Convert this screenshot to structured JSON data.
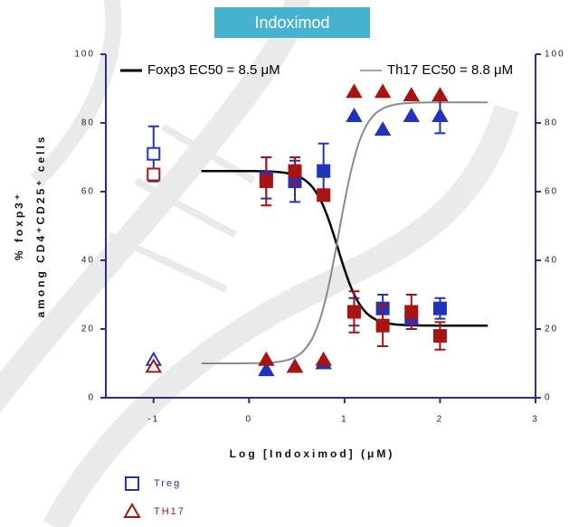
{
  "chart_data": {
    "type": "scatter",
    "title": "Indoximod",
    "x_label": "Log [Indoximod] (μM)",
    "y_label": [
      "% foxp3⁺",
      "among CD4⁺CD25⁺ cells"
    ],
    "xlim": [
      -1.5,
      3
    ],
    "xticks": [
      -1,
      0,
      1,
      2,
      3
    ],
    "ylim": [
      0,
      100
    ],
    "yticks": [
      0,
      20,
      40,
      60,
      80,
      100
    ],
    "y2lim": [
      0,
      100
    ],
    "y2ticks": [
      0,
      20,
      40,
      60,
      80,
      100
    ],
    "axis_color": "#2b2d8f",
    "x": [
      -1,
      0.18,
      0.48,
      0.78,
      1.1,
      1.4,
      1.7,
      2.0
    ],
    "series": [
      {
        "name": "Treg",
        "color": "#2233bb",
        "marker": "square",
        "filled": [
          false,
          true,
          true,
          true,
          true,
          true,
          true,
          true
        ],
        "values": [
          71,
          64,
          63,
          66,
          25,
          26,
          23,
          26
        ],
        "errors": [
          8,
          6,
          6,
          8,
          4,
          4,
          3,
          3
        ]
      },
      {
        "color": "#a81414",
        "marker": "square",
        "filled": [
          false,
          true,
          true,
          true,
          true,
          true,
          true,
          true
        ],
        "values": [
          65,
          63,
          66,
          59,
          25,
          21,
          25,
          18
        ],
        "errors": [
          null,
          7,
          4,
          null,
          6,
          6,
          5,
          4
        ]
      },
      {
        "color": "#2233bb",
        "marker": "triangle",
        "filled": [
          false,
          true,
          true,
          true,
          true,
          true,
          true,
          true
        ],
        "values": [
          11,
          8,
          9,
          10,
          82,
          78,
          82,
          82
        ],
        "errors": [
          null,
          null,
          null,
          null,
          null,
          null,
          null,
          5
        ]
      },
      {
        "name": "TH17",
        "color": "#a81414",
        "marker": "triangle",
        "filled": [
          false,
          true,
          true,
          true,
          true,
          true,
          true,
          true
        ],
        "values": [
          9,
          11,
          9,
          11,
          89,
          89,
          88,
          88
        ],
        "errors": [
          null,
          null,
          null,
          null,
          null,
          null,
          null,
          null
        ]
      }
    ],
    "curves": [
      {
        "name": "Foxp3 EC50 = 8.5 μM",
        "color": "#000000",
        "bottom": 21,
        "top": 66,
        "logec50": 0.93,
        "hill": -3.5,
        "xrange": [
          -0.5,
          2.5
        ]
      },
      {
        "name": "Th17 EC50 = 8.8 μM",
        "color": "#8a8a8a",
        "bottom": 10,
        "top": 86,
        "logec50": 0.94,
        "hill": 3.5,
        "xrange": [
          -0.5,
          2.5
        ]
      }
    ]
  }
}
